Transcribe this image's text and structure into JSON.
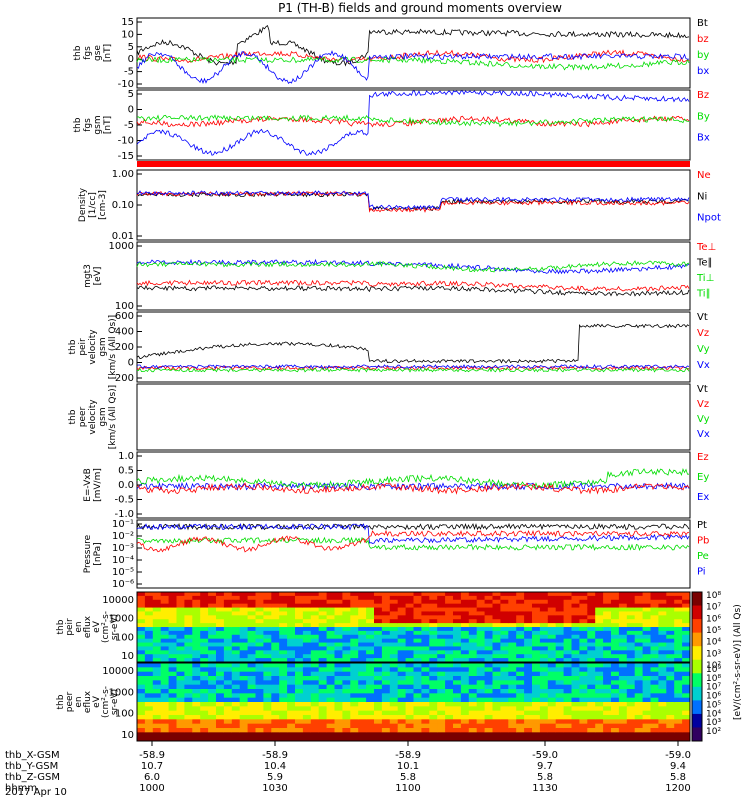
{
  "title": "P1 (TH-B) fields and ground moments overview",
  "colors": {
    "black": "#000000",
    "red": "#ff0000",
    "green": "#00dd00",
    "blue": "#0000ff"
  },
  "chart_data": [
    {
      "type": "line",
      "id": "fgs-gse",
      "ylabel": [
        "thb",
        "fgs",
        "gse",
        "[nT]"
      ],
      "yticks": [
        "15",
        "10",
        "5",
        "0",
        "-5",
        "-10"
      ],
      "ylim": [
        -10,
        16
      ],
      "legend": [
        {
          "label": "Bt",
          "color": "black"
        },
        {
          "label": "bz",
          "color": "red"
        },
        {
          "label": "by",
          "color": "green"
        },
        {
          "label": "bx",
          "color": "blue"
        }
      ]
    },
    {
      "type": "line",
      "id": "fgs-gsm",
      "ylabel": [
        "thb",
        "fgs",
        "gsm",
        "[nT]"
      ],
      "yticks": [
        "5",
        "0",
        "-5",
        "-10",
        "-15"
      ],
      "ylim": [
        -18,
        8
      ],
      "legend": [
        {
          "label": "Bz",
          "color": "red"
        },
        {
          "label": "By",
          "color": "green"
        },
        {
          "label": "Bx",
          "color": "blue"
        }
      ]
    },
    {
      "type": "line",
      "id": "density",
      "ylabel": [
        "Density",
        "[1/cc]",
        "[cm-3]"
      ],
      "yticks": [
        "1.00",
        "0.10",
        "0.01"
      ],
      "log": true,
      "legend": [
        {
          "label": "Ne",
          "color": "red"
        },
        {
          "label": "Ni",
          "color": "black"
        },
        {
          "label": "Npot",
          "color": "blue"
        }
      ]
    },
    {
      "type": "line",
      "id": "temp",
      "ylabel": [
        "mgt3",
        "[eV]"
      ],
      "yticks": [
        "1000",
        "100"
      ],
      "log": true,
      "legend": [
        {
          "label": "Te⊥",
          "color": "red"
        },
        {
          "label": "Te∥",
          "color": "black"
        },
        {
          "label": "Ti⊥",
          "color": "green"
        },
        {
          "label": "Ti∥",
          "color": "green"
        }
      ]
    },
    {
      "type": "line",
      "id": "vel1",
      "ylabel": [
        "thb",
        "peir",
        "velocity",
        "gsm",
        "[km/s (All Qs)]"
      ],
      "yticks": [
        "600",
        "400",
        "200",
        "0",
        "-200"
      ],
      "ylim": [
        -200,
        600
      ],
      "legend": [
        {
          "label": "Vt",
          "color": "black"
        },
        {
          "label": "Vz",
          "color": "red"
        },
        {
          "label": "Vy",
          "color": "green"
        },
        {
          "label": "Vx",
          "color": "blue"
        }
      ]
    },
    {
      "type": "line",
      "id": "vel2",
      "ylabel": [
        "thb",
        "peer",
        "velocity",
        "gsm",
        "[km/s (All Qs)]"
      ],
      "yticks": [],
      "legend": [
        {
          "label": "Vt",
          "color": "black"
        },
        {
          "label": "Vz",
          "color": "red"
        },
        {
          "label": "Vy",
          "color": "green"
        },
        {
          "label": "Vx",
          "color": "blue"
        }
      ]
    },
    {
      "type": "line",
      "id": "efield",
      "ylabel": [
        "E=-VxB",
        "[mV/m]"
      ],
      "yticks": [
        "1.0",
        "0.5",
        "0.0",
        "-0.5",
        "-1.0"
      ],
      "ylim": [
        -1.2,
        1.2
      ],
      "legend": [
        {
          "label": "Ez",
          "color": "red"
        },
        {
          "label": "Ey",
          "color": "green"
        },
        {
          "label": "Ex",
          "color": "blue"
        }
      ]
    },
    {
      "type": "line",
      "id": "pressure",
      "ylabel": [
        "Pressure",
        "[nPa]"
      ],
      "yticks": [
        "10⁻¹",
        "10⁻²",
        "10⁻³",
        "10⁻⁴",
        "10⁻⁵",
        "10⁻⁶"
      ],
      "log": true,
      "legend": [
        {
          "label": "Pt",
          "color": "black"
        },
        {
          "label": "Pb",
          "color": "red"
        },
        {
          "label": "Pe",
          "color": "green"
        },
        {
          "label": "Pi",
          "color": "blue"
        }
      ]
    },
    {
      "type": "heatmap",
      "id": "peir-spec",
      "ylabel": [
        "thb",
        "peir",
        "en",
        "eflux",
        "eV",
        "(cm²-s-",
        "sr-eV)"
      ],
      "yticks": [
        "10000",
        "1000",
        "100",
        "10"
      ],
      "colorbar": {
        "ticks": [
          "10⁸",
          "10⁷",
          "10⁶",
          "10⁵",
          "10⁴",
          "10³",
          "10²"
        ]
      }
    },
    {
      "type": "heatmap",
      "id": "peer-spec",
      "ylabel": [
        "thb",
        "peer",
        "en",
        "eflux",
        "eV",
        "(cm²-s-",
        "sr-eV)"
      ],
      "yticks": [
        "10000",
        "1000",
        "100",
        "10"
      ],
      "colorbar": {
        "ticks": [
          "10⁹",
          "10⁸",
          "10⁷",
          "10⁶",
          "10⁵",
          "10⁴",
          "10³",
          "10²"
        ]
      }
    }
  ],
  "colorbar_label": "[eV/(cm²-s-sr-eV)] (All Qs)",
  "xaxis": {
    "rows": [
      {
        "label": "thb_X-GSM",
        "values": [
          "-58.9",
          "-58.9",
          "-58.9",
          "-59.0",
          "-59.0"
        ]
      },
      {
        "label": "thb_Y-GSM",
        "values": [
          "10.7",
          "10.4",
          "10.1",
          "9.7",
          "9.4"
        ]
      },
      {
        "label": "thb_Z-GSM",
        "values": [
          "6.0",
          "5.9",
          "5.8",
          "5.8",
          "5.8"
        ]
      },
      {
        "label": "hhmm",
        "values": [
          "1000",
          "1030",
          "1100",
          "1130",
          "1200"
        ]
      }
    ],
    "date": "2017 Apr 10"
  }
}
